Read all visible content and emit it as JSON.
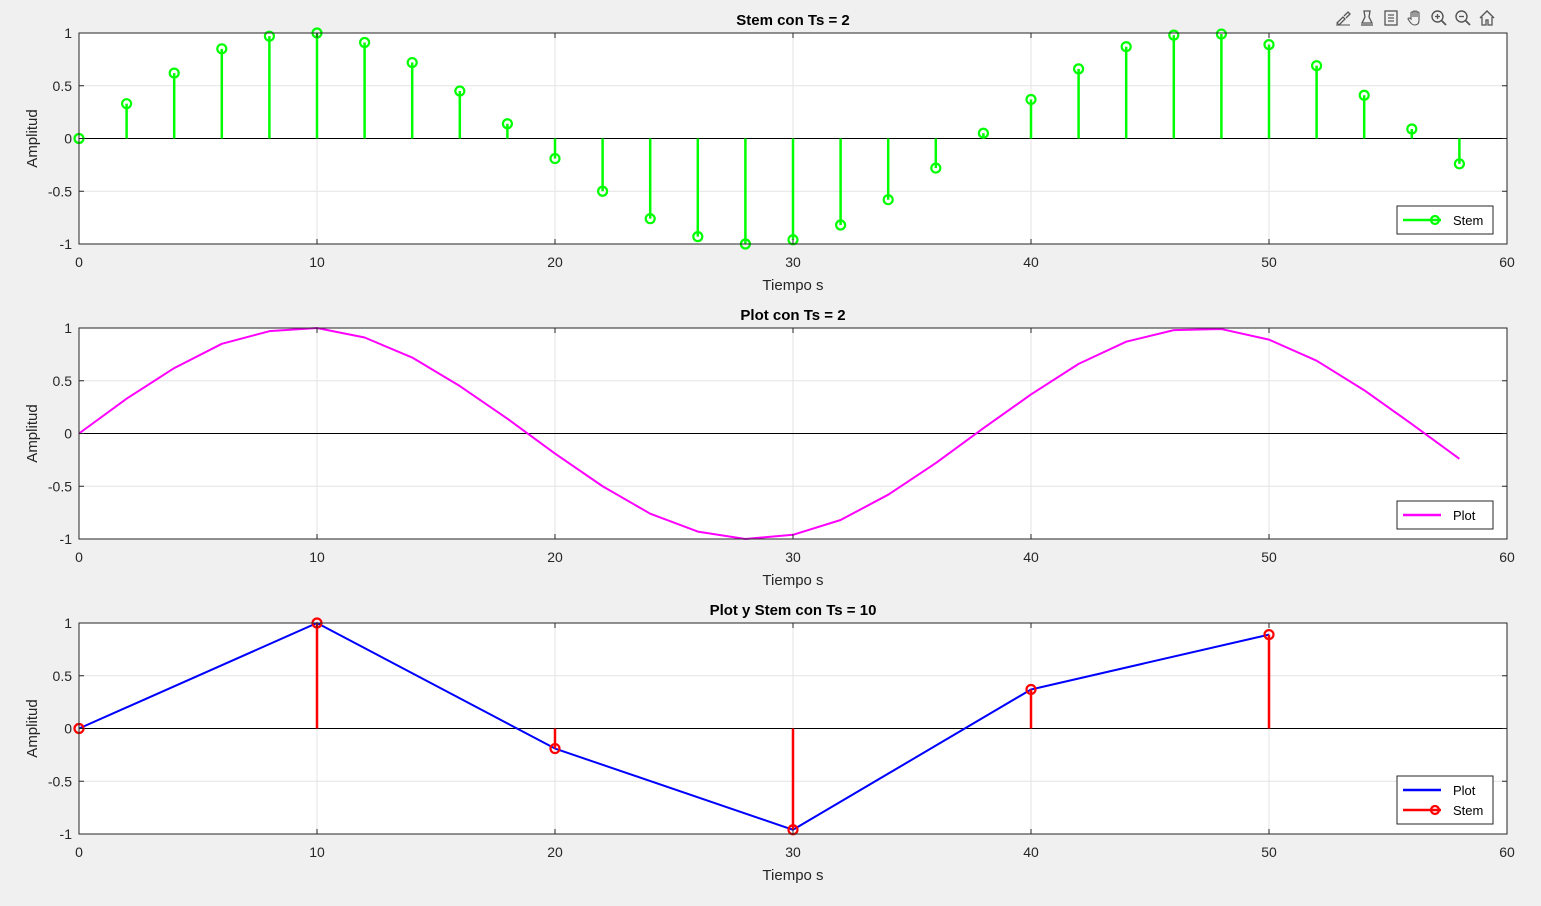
{
  "toolbar": {
    "icons": [
      "brush-icon",
      "data-tips-icon",
      "legend-toggle-icon",
      "pan-icon",
      "zoom-in-icon",
      "zoom-out-icon",
      "home-icon"
    ]
  },
  "colors": {
    "background": "#f0f0f0",
    "axes_bg": "#ffffff",
    "grid": "#e3e3e3",
    "axis": "#262626",
    "green": "#00ff00",
    "magenta": "#ff00ff",
    "blue": "#0000ff",
    "red": "#ff0000"
  },
  "chart_data": [
    {
      "type": "stem",
      "title": "Stem con Ts = 2",
      "xlabel": "Tiempo s",
      "ylabel": "Amplitud",
      "xlim": [
        0,
        60
      ],
      "ylim": [
        -1,
        1
      ],
      "xticks": [
        "0",
        "10",
        "20",
        "30",
        "40",
        "50",
        "60"
      ],
      "yticks": [
        "-1",
        "-0.5",
        "0",
        "0.5",
        "1"
      ],
      "grid": true,
      "legend": "bottom-right",
      "series": [
        {
          "name": "Stem",
          "style": "stem",
          "color": "#00ff00",
          "x": [
            0,
            2,
            4,
            6,
            8,
            10,
            12,
            14,
            16,
            18,
            20,
            22,
            24,
            26,
            28,
            30,
            32,
            34,
            36,
            38,
            40,
            42,
            44,
            46,
            48,
            50,
            52,
            54,
            56,
            58
          ],
          "y": [
            0,
            0.33,
            0.62,
            0.85,
            0.97,
            1.0,
            0.91,
            0.72,
            0.45,
            0.14,
            -0.19,
            -0.5,
            -0.76,
            -0.93,
            -1.0,
            -0.96,
            -0.82,
            -0.58,
            -0.28,
            0.05,
            0.37,
            0.66,
            0.87,
            0.98,
            0.99,
            0.89,
            0.69,
            0.41,
            0.09,
            -0.24
          ]
        }
      ]
    },
    {
      "type": "line",
      "title": "Plot con Ts = 2",
      "xlabel": "Tiempo s",
      "ylabel": "Amplitud",
      "xlim": [
        0,
        60
      ],
      "ylim": [
        -1,
        1
      ],
      "xticks": [
        "0",
        "10",
        "20",
        "30",
        "40",
        "50",
        "60"
      ],
      "yticks": [
        "-1",
        "-0.5",
        "0",
        "0.5",
        "1"
      ],
      "grid": true,
      "legend": "bottom-right",
      "series": [
        {
          "name": "Plot",
          "style": "line",
          "color": "#ff00ff",
          "x": [
            0,
            2,
            4,
            6,
            8,
            10,
            12,
            14,
            16,
            18,
            20,
            22,
            24,
            26,
            28,
            30,
            32,
            34,
            36,
            38,
            40,
            42,
            44,
            46,
            48,
            50,
            52,
            54,
            56,
            58
          ],
          "y": [
            0,
            0.33,
            0.62,
            0.85,
            0.97,
            1.0,
            0.91,
            0.72,
            0.45,
            0.14,
            -0.19,
            -0.5,
            -0.76,
            -0.93,
            -1.0,
            -0.96,
            -0.82,
            -0.58,
            -0.28,
            0.05,
            0.37,
            0.66,
            0.87,
            0.98,
            0.99,
            0.89,
            0.69,
            0.41,
            0.09,
            -0.24
          ]
        }
      ]
    },
    {
      "type": "line",
      "title": "Plot y Stem con Ts = 10",
      "xlabel": "Tiempo s",
      "ylabel": "Amplitud",
      "xlim": [
        0,
        60
      ],
      "ylim": [
        -1,
        1
      ],
      "xticks": [
        "0",
        "10",
        "20",
        "30",
        "40",
        "50",
        "60"
      ],
      "yticks": [
        "-1",
        "-0.5",
        "0",
        "0.5",
        "1"
      ],
      "grid": true,
      "legend": "bottom-right",
      "series": [
        {
          "name": "Plot",
          "style": "line",
          "color": "#0000ff",
          "x": [
            0,
            10,
            20,
            30,
            40,
            50
          ],
          "y": [
            0,
            1.0,
            -0.19,
            -0.96,
            0.37,
            0.89
          ]
        },
        {
          "name": "Stem",
          "style": "stem",
          "color": "#ff0000",
          "x": [
            0,
            10,
            20,
            30,
            40,
            50
          ],
          "y": [
            0,
            1.0,
            -0.19,
            -0.96,
            0.37,
            0.89
          ]
        }
      ]
    }
  ]
}
